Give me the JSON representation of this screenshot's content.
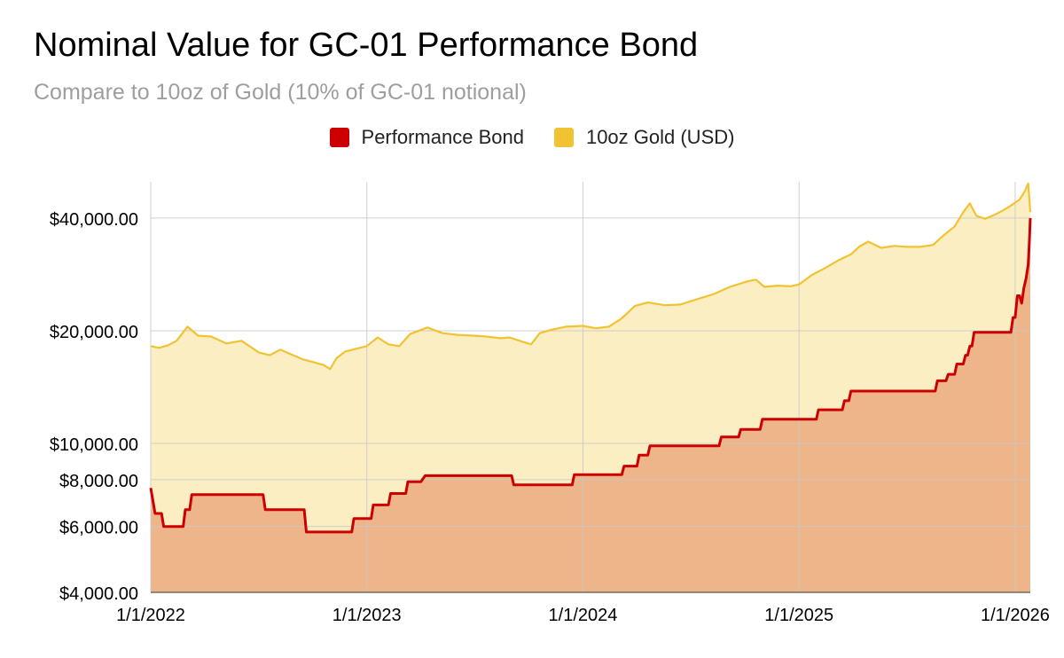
{
  "chart_data": {
    "type": "area",
    "title": "Nominal Value for GC-01 Performance Bond",
    "subtitle": "Compare to 10oz of Gold (10% of GC-01 notional)",
    "yscale": "log",
    "ylim": [
      4000,
      50000
    ],
    "y_ticks": [
      {
        "value": 4000,
        "label": "$4,000.00"
      },
      {
        "value": 6000,
        "label": "$6,000.00"
      },
      {
        "value": 8000,
        "label": "$8,000.00"
      },
      {
        "value": 10000,
        "label": "$10,000.00"
      },
      {
        "value": 20000,
        "label": "$20,000.00"
      },
      {
        "value": 40000,
        "label": "$40,000.00"
      }
    ],
    "xlim": [
      2022.0,
      2026.07
    ],
    "x_ticks": [
      {
        "value": 2022.0,
        "label": "1/1/2022"
      },
      {
        "value": 2023.0,
        "label": "1/1/2023"
      },
      {
        "value": 2024.0,
        "label": "1/1/2024"
      },
      {
        "value": 2025.0,
        "label": "1/1/2025"
      },
      {
        "value": 2026.0,
        "label": "1/1/2026"
      }
    ],
    "legend_position": "top-center",
    "series": [
      {
        "name": "Performance Bond",
        "color": "#cc0000",
        "fill": "#eeb58a",
        "points": [
          [
            2022.0,
            7600
          ],
          [
            2022.02,
            6500
          ],
          [
            2022.05,
            6500
          ],
          [
            2022.06,
            6000
          ],
          [
            2022.15,
            6000
          ],
          [
            2022.16,
            6650
          ],
          [
            2022.18,
            6650
          ],
          [
            2022.19,
            7300
          ],
          [
            2022.52,
            7300
          ],
          [
            2022.53,
            6650
          ],
          [
            2022.71,
            6650
          ],
          [
            2022.72,
            5800
          ],
          [
            2022.93,
            5800
          ],
          [
            2022.94,
            6300
          ],
          [
            2023.02,
            6300
          ],
          [
            2023.03,
            6850
          ],
          [
            2023.1,
            6850
          ],
          [
            2023.11,
            7350
          ],
          [
            2023.18,
            7350
          ],
          [
            2023.19,
            7900
          ],
          [
            2023.25,
            7900
          ],
          [
            2023.27,
            8200
          ],
          [
            2023.67,
            8200
          ],
          [
            2023.68,
            7750
          ],
          [
            2023.95,
            7750
          ],
          [
            2023.96,
            8250
          ],
          [
            2024.18,
            8250
          ],
          [
            2024.19,
            8700
          ],
          [
            2024.25,
            8700
          ],
          [
            2024.26,
            9300
          ],
          [
            2024.3,
            9300
          ],
          [
            2024.31,
            9850
          ],
          [
            2024.63,
            9850
          ],
          [
            2024.64,
            10400
          ],
          [
            2024.72,
            10400
          ],
          [
            2024.73,
            10900
          ],
          [
            2024.82,
            10900
          ],
          [
            2024.83,
            11600
          ],
          [
            2025.08,
            11600
          ],
          [
            2025.09,
            12300
          ],
          [
            2025.2,
            12300
          ],
          [
            2025.21,
            13000
          ],
          [
            2025.23,
            13000
          ],
          [
            2025.24,
            13800
          ],
          [
            2025.63,
            13800
          ],
          [
            2025.64,
            14700
          ],
          [
            2025.68,
            14700
          ],
          [
            2025.69,
            15300
          ],
          [
            2025.72,
            15300
          ],
          [
            2025.73,
            16300
          ],
          [
            2025.76,
            16300
          ],
          [
            2025.77,
            17200
          ],
          [
            2025.78,
            17200
          ],
          [
            2025.79,
            18200
          ],
          [
            2025.8,
            18200
          ],
          [
            2025.81,
            19800
          ],
          [
            2025.98,
            19800
          ],
          [
            2025.99,
            21700
          ],
          [
            2026.0,
            21700
          ],
          [
            2026.01,
            24800
          ],
          [
            2026.02,
            24800
          ],
          [
            2026.03,
            23700
          ],
          [
            2026.04,
            26000
          ],
          [
            2026.05,
            27500
          ],
          [
            2026.06,
            30000
          ],
          [
            2026.065,
            34000
          ],
          [
            2026.07,
            40000
          ]
        ]
      },
      {
        "name": "10oz Gold (USD)",
        "color": "#f1c232",
        "fill": "#fbeec3",
        "points": [
          [
            2022.0,
            18200
          ],
          [
            2022.04,
            18000
          ],
          [
            2022.08,
            18300
          ],
          [
            2022.12,
            18800
          ],
          [
            2022.17,
            20500
          ],
          [
            2022.22,
            19400
          ],
          [
            2022.28,
            19300
          ],
          [
            2022.35,
            18500
          ],
          [
            2022.42,
            18800
          ],
          [
            2022.5,
            17500
          ],
          [
            2022.55,
            17200
          ],
          [
            2022.6,
            17800
          ],
          [
            2022.65,
            17300
          ],
          [
            2022.7,
            16800
          ],
          [
            2022.75,
            16500
          ],
          [
            2022.8,
            16200
          ],
          [
            2022.83,
            15800
          ],
          [
            2022.86,
            16900
          ],
          [
            2022.9,
            17600
          ],
          [
            2022.95,
            17900
          ],
          [
            2023.0,
            18200
          ],
          [
            2023.05,
            19200
          ],
          [
            2023.1,
            18400
          ],
          [
            2023.15,
            18200
          ],
          [
            2023.2,
            19600
          ],
          [
            2023.28,
            20400
          ],
          [
            2023.35,
            19700
          ],
          [
            2023.42,
            19500
          ],
          [
            2023.5,
            19400
          ],
          [
            2023.55,
            19300
          ],
          [
            2023.62,
            19100
          ],
          [
            2023.66,
            19200
          ],
          [
            2023.72,
            18700
          ],
          [
            2023.76,
            18400
          ],
          [
            2023.8,
            19700
          ],
          [
            2023.85,
            20100
          ],
          [
            2023.92,
            20500
          ],
          [
            2024.0,
            20600
          ],
          [
            2024.06,
            20300
          ],
          [
            2024.12,
            20500
          ],
          [
            2024.18,
            21600
          ],
          [
            2024.24,
            23300
          ],
          [
            2024.3,
            23800
          ],
          [
            2024.38,
            23400
          ],
          [
            2024.45,
            23500
          ],
          [
            2024.52,
            24200
          ],
          [
            2024.6,
            25000
          ],
          [
            2024.68,
            26200
          ],
          [
            2024.76,
            27100
          ],
          [
            2024.8,
            27400
          ],
          [
            2024.84,
            26200
          ],
          [
            2024.9,
            26400
          ],
          [
            2024.96,
            26300
          ],
          [
            2025.0,
            26600
          ],
          [
            2025.06,
            28200
          ],
          [
            2025.12,
            29400
          ],
          [
            2025.18,
            30800
          ],
          [
            2025.24,
            32000
          ],
          [
            2025.28,
            33600
          ],
          [
            2025.32,
            34600
          ],
          [
            2025.38,
            33300
          ],
          [
            2025.44,
            33700
          ],
          [
            2025.5,
            33500
          ],
          [
            2025.56,
            33500
          ],
          [
            2025.62,
            33900
          ],
          [
            2025.67,
            36000
          ],
          [
            2025.72,
            38000
          ],
          [
            2025.76,
            41500
          ],
          [
            2025.79,
            43800
          ],
          [
            2025.82,
            40600
          ],
          [
            2025.86,
            39800
          ],
          [
            2025.9,
            40700
          ],
          [
            2025.94,
            41800
          ],
          [
            2025.98,
            43200
          ],
          [
            2026.02,
            44800
          ],
          [
            2026.045,
            47200
          ],
          [
            2026.06,
            49500
          ],
          [
            2026.07,
            41500
          ]
        ]
      }
    ]
  }
}
